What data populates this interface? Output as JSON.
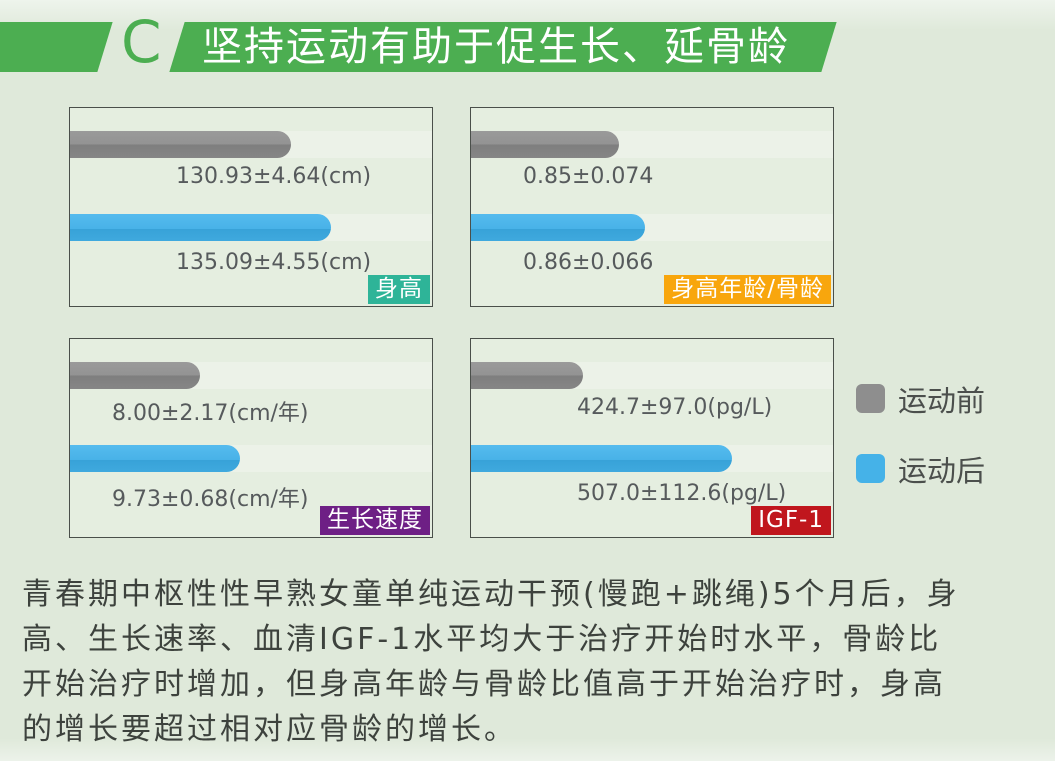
{
  "colors": {
    "green": "#4cae51",
    "page_background": "#dfe9da",
    "gray_bar": "#8e8e8e",
    "blue_bar": "#45b2e8"
  },
  "header": {
    "section_letter": "C",
    "title": "坚持运动有助于促生长、延骨龄"
  },
  "legend": {
    "items": [
      {
        "label": "运动前",
        "color": "#8e8e8e"
      },
      {
        "label": "运动后",
        "color": "#45b2e8"
      }
    ]
  },
  "chart_data": [
    {
      "type": "bar",
      "title": "身高",
      "badge_color": "#2eb498",
      "unit": "cm",
      "categories": [
        "运动前",
        "运动后"
      ],
      "series": [
        {
          "name": "运动前",
          "value": 130.93,
          "sd": 4.64,
          "label": "130.93±4.64(cm)",
          "bar_pct": 61
        },
        {
          "name": "运动后",
          "value": 135.09,
          "sd": 4.55,
          "label": "135.09±4.55(cm)",
          "bar_pct": 72
        }
      ]
    },
    {
      "type": "bar",
      "title": "身高年龄/骨龄",
      "badge_color": "#f8a60d",
      "unit": "",
      "categories": [
        "运动前",
        "运动后"
      ],
      "series": [
        {
          "name": "运动前",
          "value": 0.85,
          "sd": 0.074,
          "label": "0.85±0.074",
          "bar_pct": 41
        },
        {
          "name": "运动后",
          "value": 0.86,
          "sd": 0.066,
          "label": "0.86±0.066",
          "bar_pct": 48
        }
      ]
    },
    {
      "type": "bar",
      "title": "生长速度",
      "badge_color": "#6e1f85",
      "unit": "cm/年",
      "categories": [
        "运动前",
        "运动后"
      ],
      "series": [
        {
          "name": "运动前",
          "value": 8.0,
          "sd": 2.17,
          "label": "8.00±2.17(cm/年)",
          "bar_pct": 36
        },
        {
          "name": "运动后",
          "value": 9.73,
          "sd": 0.68,
          "label": "9.73±0.68(cm/年)",
          "bar_pct": 47
        }
      ]
    },
    {
      "type": "bar",
      "title": "IGF-1",
      "badge_color": "#c0161d",
      "unit": "pg/L",
      "categories": [
        "运动前",
        "运动后"
      ],
      "series": [
        {
          "name": "运动前",
          "value": 424.7,
          "sd": 97.0,
          "label": "424.7±97.0(pg/L)",
          "bar_pct": 31
        },
        {
          "name": "运动后",
          "value": 507.0,
          "sd": 112.6,
          "label": "507.0±112.6(pg/L)",
          "bar_pct": 72
        }
      ]
    }
  ],
  "paragraph": {
    "lines": [
      "青春期中枢性性早熟女童单纯运动干预(慢跑+跳绳)5个月后，身",
      "高、生长速率、血清IGF-1水平均大于治疗开始时水平，骨龄比",
      "开始治疗时增加，但身高年龄与骨龄比值高于开始治疗时，身高",
      "的增长要超过相对应骨龄的增长。"
    ]
  }
}
